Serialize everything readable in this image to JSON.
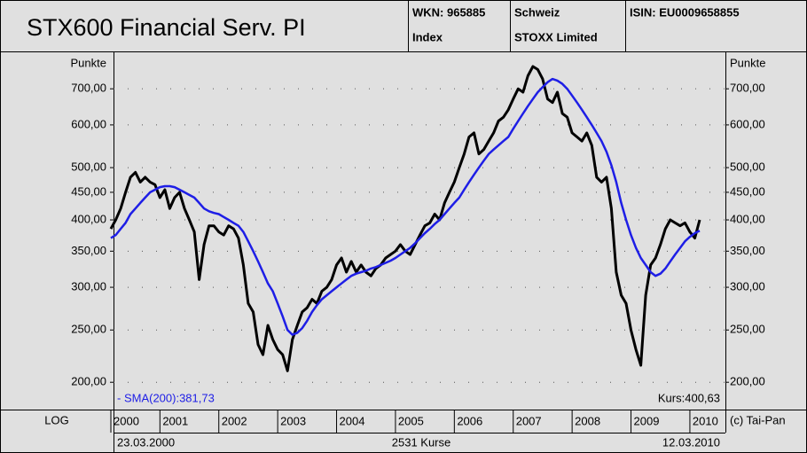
{
  "header": {
    "wkn": "WKN: 965885",
    "kind": "Index",
    "country": "Schweiz",
    "provider": "STOXX Limited",
    "isin": "ISIN: EU0009658855"
  },
  "footer": {
    "scale_label": "LOG",
    "copyright": "(c) Tai-Pan",
    "start_date": "23.03.2000",
    "count": "2531 Kurse",
    "end_date": "12.03.2010"
  },
  "chart_data": {
    "type": "line",
    "title": "STX600 Financial Serv. PI",
    "y_label_left": "Punkte",
    "y_label_right": "Punkte",
    "log_scale": true,
    "grid": true,
    "categories": [
      "2000",
      null,
      null,
      null,
      null,
      null,
      null,
      null,
      null,
      null,
      "2001",
      null,
      null,
      null,
      null,
      null,
      null,
      null,
      null,
      null,
      null,
      null,
      "2002",
      null,
      null,
      null,
      null,
      null,
      null,
      null,
      null,
      null,
      null,
      null,
      "2003",
      null,
      null,
      null,
      null,
      null,
      null,
      null,
      null,
      null,
      null,
      null,
      "2004",
      null,
      null,
      null,
      null,
      null,
      null,
      null,
      null,
      null,
      null,
      null,
      "2005",
      null,
      null,
      null,
      null,
      null,
      null,
      null,
      null,
      null,
      null,
      null,
      "2006",
      null,
      null,
      null,
      null,
      null,
      null,
      null,
      null,
      null,
      null,
      null,
      "2007",
      null,
      null,
      null,
      null,
      null,
      null,
      null,
      null,
      null,
      null,
      null,
      "2008",
      null,
      null,
      null,
      null,
      null,
      null,
      null,
      null,
      null,
      null,
      null,
      "2009",
      null,
      null,
      null,
      null,
      null,
      null,
      null,
      null,
      null,
      null,
      null,
      "2010",
      null,
      null
    ],
    "series": [
      {
        "name": "Kurs:400,63",
        "color": "#000000",
        "values": [
          385,
          400,
          420,
          450,
          480,
          490,
          470,
          480,
          470,
          465,
          440,
          455,
          420,
          440,
          450,
          420,
          400,
          380,
          310,
          360,
          390,
          390,
          380,
          375,
          390,
          385,
          370,
          330,
          280,
          270,
          235,
          225,
          255,
          240,
          230,
          225,
          210,
          240,
          255,
          270,
          275,
          285,
          280,
          295,
          300,
          310,
          330,
          340,
          320,
          335,
          320,
          330,
          320,
          315,
          325,
          330,
          340,
          345,
          350,
          360,
          350,
          345,
          360,
          375,
          390,
          395,
          410,
          400,
          430,
          450,
          470,
          500,
          530,
          570,
          580,
          530,
          540,
          560,
          580,
          610,
          620,
          640,
          670,
          700,
          690,
          740,
          770,
          760,
          730,
          670,
          660,
          690,
          630,
          620,
          580,
          570,
          560,
          580,
          550,
          480,
          470,
          480,
          420,
          320,
          290,
          280,
          250,
          230,
          215,
          290,
          330,
          340,
          360,
          385,
          400,
          395,
          390,
          395,
          380,
          370,
          400
        ]
      },
      {
        "name": "- SMA(200):381,73",
        "color": "#1e1ee6",
        "values": [
          370,
          375,
          385,
          395,
          410,
          420,
          430,
          440,
          450,
          455,
          460,
          462,
          462,
          460,
          455,
          450,
          445,
          440,
          430,
          420,
          415,
          412,
          410,
          405,
          400,
          395,
          390,
          380,
          365,
          350,
          335,
          320,
          305,
          295,
          280,
          265,
          250,
          245,
          247,
          252,
          260,
          270,
          278,
          285,
          290,
          295,
          300,
          305,
          310,
          315,
          318,
          320,
          322,
          325,
          327,
          330,
          333,
          336,
          340,
          345,
          350,
          355,
          362,
          370,
          378,
          385,
          393,
          400,
          410,
          420,
          430,
          440,
          455,
          470,
          485,
          500,
          515,
          530,
          540,
          550,
          560,
          570,
          590,
          610,
          630,
          650,
          670,
          690,
          705,
          720,
          730,
          725,
          715,
          700,
          680,
          660,
          640,
          620,
          600,
          580,
          560,
          535,
          505,
          470,
          430,
          400,
          375,
          355,
          340,
          330,
          320,
          315,
          318,
          325,
          335,
          345,
          355,
          365,
          372,
          378,
          382
        ]
      }
    ],
    "ylim": [
      178,
      818
    ],
    "yticks": [
      {
        "value": 200,
        "label": "200,00"
      },
      {
        "value": 250,
        "label": "250,00"
      },
      {
        "value": 300,
        "label": "300,00"
      },
      {
        "value": 350,
        "label": "350,00"
      },
      {
        "value": 400,
        "label": "400,00"
      },
      {
        "value": 450,
        "label": "450,00"
      },
      {
        "value": 500,
        "label": "500,00"
      },
      {
        "value": 600,
        "label": "600,00"
      },
      {
        "value": 700,
        "label": "700,00"
      }
    ]
  }
}
